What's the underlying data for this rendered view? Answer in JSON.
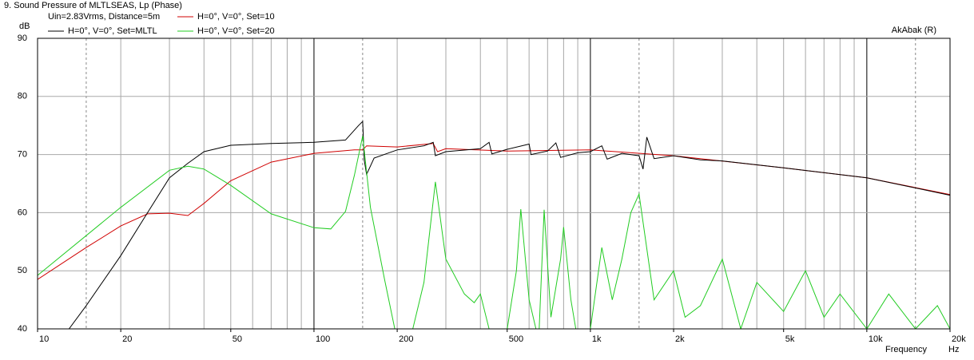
{
  "chart_data": {
    "type": "line",
    "title": "9. Sound Pressure of MLTLSEAS, Lp (Phase)",
    "legend_note": "Uin=2.83Vrms, Distance=5m",
    "watermark": "AkAbak (R)",
    "ylabel": "dB",
    "xlabel": "Frequency",
    "xunit": "Hz",
    "xlog": true,
    "xlim": [
      10,
      20000
    ],
    "ylim": [
      40,
      90
    ],
    "yticks": [
      40,
      50,
      60,
      70,
      80,
      90
    ],
    "xticks": [
      10,
      20,
      50,
      100,
      200,
      500,
      {
        "value": 1000,
        "label": "1k"
      },
      {
        "value": 2000,
        "label": "2k"
      },
      {
        "value": 5000,
        "label": "5k"
      },
      {
        "value": 10000,
        "label": "10k"
      },
      {
        "value": 20000,
        "label": "20k"
      }
    ],
    "xgrid": [
      20,
      30,
      40,
      50,
      60,
      70,
      80,
      90,
      200,
      300,
      400,
      500,
      600,
      700,
      800,
      900,
      2000,
      3000,
      4000,
      5000,
      6000,
      7000,
      8000,
      9000,
      20000
    ],
    "xgrid_dashed": [
      15,
      150,
      1500,
      15000
    ],
    "xgrid_major": [
      100,
      1000,
      10000
    ],
    "grid": true,
    "series": [
      {
        "name": "H=0°, V=0°, Set=10",
        "color": "#d00000",
        "x": [
          10,
          15,
          20,
          25,
          30,
          35,
          40,
          50,
          70,
          100,
          140,
          150,
          155,
          200,
          270,
          280,
          300,
          500,
          1000,
          2000,
          5000,
          10000,
          20000
        ],
        "values": [
          48.5,
          54,
          57.7,
          59.8,
          59.9,
          59.5,
          61.6,
          65.5,
          68.7,
          70.2,
          70.8,
          70.8,
          71.5,
          71.3,
          71.9,
          70.5,
          71,
          70.6,
          70.8,
          69.8,
          67.7,
          66,
          63.1
        ]
      },
      {
        "name": "H=0°, V=0°, Set=MLTL",
        "color": "#000000",
        "x": [
          10,
          13,
          15,
          20,
          25,
          30,
          35,
          40,
          50,
          70,
          100,
          130,
          145,
          150,
          152,
          155,
          165,
          200,
          250,
          270,
          275,
          300,
          400,
          430,
          440,
          500,
          600,
          610,
          700,
          750,
          780,
          900,
          1000,
          1100,
          1150,
          1300,
          1500,
          1550,
          1600,
          1700,
          2000,
          2500,
          3000,
          5000,
          10000,
          20000
        ],
        "values": [
          40,
          40,
          44,
          52.6,
          60,
          66,
          68.5,
          70.5,
          71.6,
          71.9,
          72.1,
          72.5,
          75,
          75.7,
          69,
          66.6,
          69.4,
          70.8,
          71.5,
          72.1,
          69.8,
          70.5,
          71,
          72.1,
          70.1,
          70.9,
          71.8,
          70,
          70.6,
          72,
          69.5,
          70.3,
          70.5,
          71.5,
          69.2,
          70.2,
          69.8,
          67.5,
          73,
          69.3,
          69.8,
          69.1,
          68.9,
          67.7,
          66,
          63
        ]
      },
      {
        "name": "H=0°, V=0°, Set=20",
        "color": "#22cc22",
        "x": [
          10,
          20,
          30,
          35,
          40,
          50,
          70,
          100,
          115,
          130,
          140,
          150,
          160,
          180,
          200,
          220,
          250,
          275,
          300,
          350,
          380,
          400,
          430,
          450,
          500,
          540,
          560,
          600,
          650,
          680,
          720,
          780,
          800,
          850,
          900,
          1000,
          1100,
          1200,
          1300,
          1400,
          1500,
          1700,
          2000,
          2200,
          2500,
          3000,
          3500,
          4000,
          5000,
          6000,
          7000,
          8000,
          10000,
          12000,
          15000,
          18000,
          20000
        ],
        "values": [
          49.2,
          60.9,
          67.3,
          68,
          67.5,
          64.7,
          59.8,
          57.4,
          57.2,
          60.2,
          66.4,
          73.2,
          60.9,
          48.5,
          38,
          37,
          48,
          65.3,
          52,
          46,
          44.5,
          46,
          40,
          36,
          40,
          50,
          60.6,
          45,
          38,
          60.5,
          42,
          52,
          57.5,
          45,
          38,
          40,
          54,
          45,
          52,
          60,
          63.2,
          45,
          50,
          42,
          44,
          52,
          40,
          48,
          43,
          50,
          42,
          46,
          40,
          46,
          40,
          44,
          40
        ]
      }
    ]
  }
}
